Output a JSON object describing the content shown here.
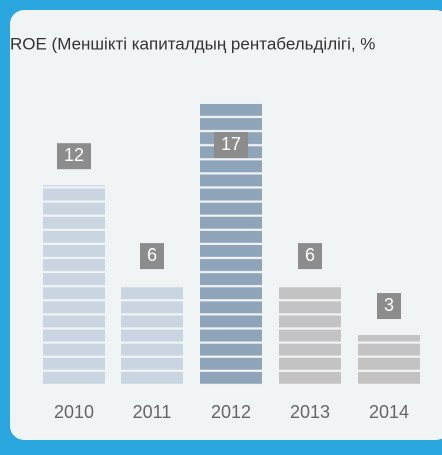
{
  "chart_data": {
    "type": "bar",
    "title": "ROE (Меншікті капиталдың рентабельділігі, %",
    "categories": [
      "2010",
      "2011",
      "2012",
      "2013",
      "2014"
    ],
    "values": [
      12,
      6,
      17,
      6,
      3
    ],
    "colors": [
      "#c9d5e0",
      "#c9d5e0",
      "#8ea4b8",
      "#c3c3c3",
      "#c3c3c3"
    ],
    "label_color": "#8c8c8c"
  }
}
